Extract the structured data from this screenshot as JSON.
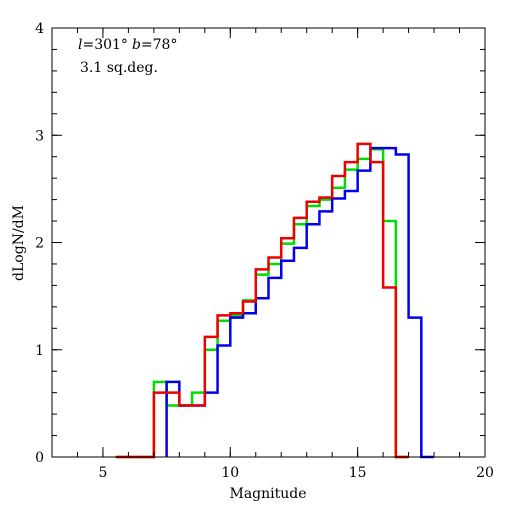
{
  "chart_data": {
    "type": "line",
    "step": true,
    "xlabel": "Magnitude",
    "ylabel": "dLogN/dM",
    "xlim": [
      3,
      20
    ],
    "ylim": [
      0,
      4
    ],
    "xticks": [
      5,
      10,
      15,
      20
    ],
    "yticks": [
      0,
      1,
      2,
      3,
      4
    ],
    "xticks_minor_step": 1,
    "yticks_minor_step": 0.2,
    "grid": false,
    "annotations": {
      "l_sym": "l",
      "l_val": "=301°",
      "b_sym": "b",
      "b_val": "=78°",
      "area": "3.1 sq.deg."
    },
    "series": [
      {
        "color": "#00dd00",
        "x": [
          5.5,
          6,
          6.5,
          7,
          7.5,
          8,
          8.5,
          9,
          9.5,
          10,
          10.5,
          11,
          11.5,
          12,
          12.5,
          13,
          13.5,
          14,
          14.5,
          15,
          15.5,
          16,
          16.5
        ],
        "y": [
          0,
          0,
          0,
          0.7,
          0.48,
          0.48,
          0.6,
          1.0,
          1.27,
          1.32,
          1.46,
          1.7,
          1.8,
          1.99,
          2.17,
          2.34,
          2.4,
          2.51,
          2.68,
          2.78,
          2.87,
          2.2,
          0
        ]
      },
      {
        "color": "#0000ee",
        "x": [
          7.5,
          8,
          8.5,
          9,
          9.5,
          10,
          10.5,
          11,
          11.5,
          12,
          12.5,
          13,
          13.5,
          14,
          14.5,
          15,
          15.5,
          16,
          16.5,
          17,
          17.5
        ],
        "y": [
          0.7,
          0.48,
          0.48,
          0.6,
          1.04,
          1.3,
          1.34,
          1.48,
          1.67,
          1.83,
          1.95,
          2.17,
          2.29,
          2.41,
          2.48,
          2.67,
          2.88,
          2.88,
          2.82,
          1.3,
          0
        ]
      },
      {
        "color": "#ee0000",
        "x": [
          5.5,
          6,
          6.5,
          7,
          7.5,
          8,
          8.5,
          9,
          9.5,
          10,
          10.5,
          11,
          11.5,
          12,
          12.5,
          13,
          13.5,
          14,
          14.5,
          15,
          15.5,
          16,
          16.5
        ],
        "y": [
          0,
          0,
          0,
          0.6,
          0.6,
          0.48,
          0.48,
          1.12,
          1.32,
          1.34,
          1.45,
          1.75,
          1.86,
          2.04,
          2.23,
          2.38,
          2.42,
          2.62,
          2.75,
          2.92,
          2.75,
          1.58,
          0
        ]
      }
    ]
  }
}
